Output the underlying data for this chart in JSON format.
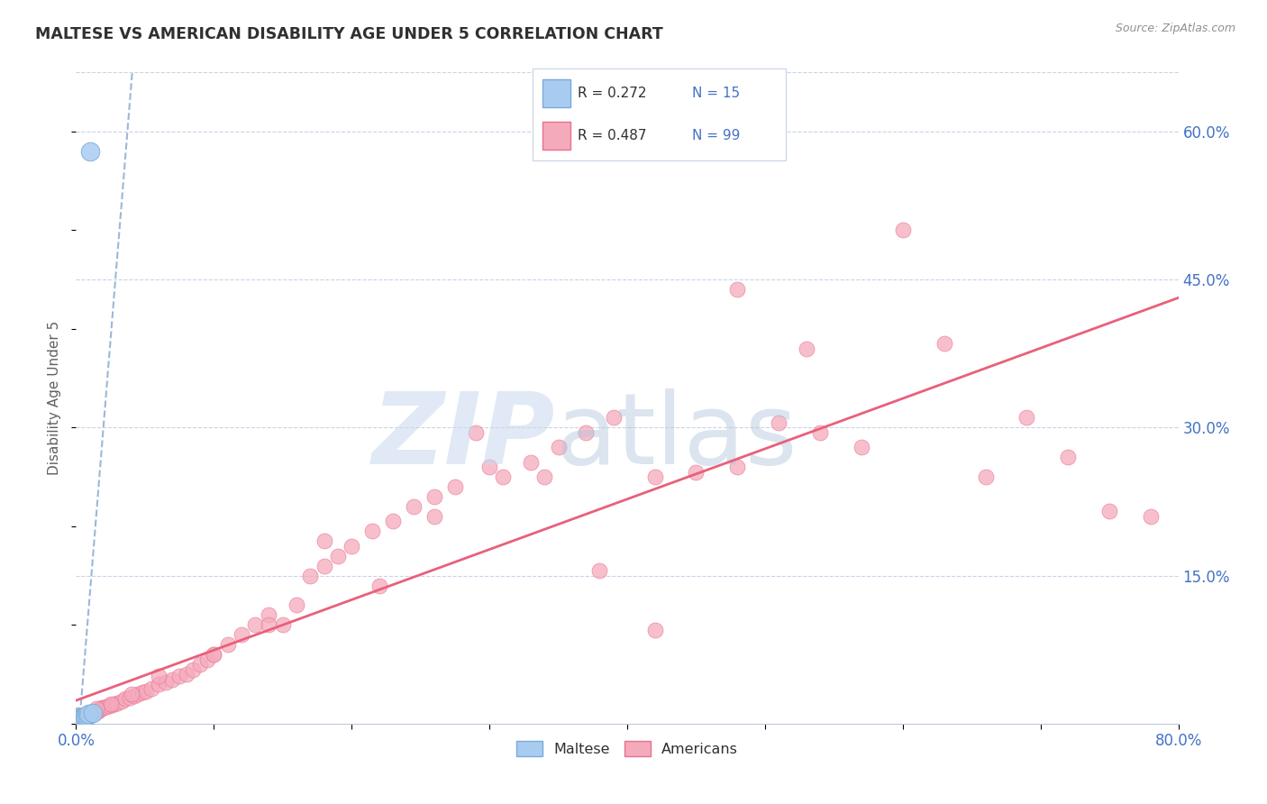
{
  "title": "MALTESE VS AMERICAN DISABILITY AGE UNDER 5 CORRELATION CHART",
  "source_text": "Source: ZipAtlas.com",
  "ylabel": "Disability Age Under 5",
  "xlim": [
    0.0,
    0.8
  ],
  "ylim": [
    0.0,
    0.66
  ],
  "yticks_right": [
    0.15,
    0.3,
    0.45,
    0.6
  ],
  "ytick_labels_right": [
    "15.0%",
    "30.0%",
    "45.0%",
    "60.0%"
  ],
  "maltese_R": 0.272,
  "maltese_N": 15,
  "american_R": 0.487,
  "american_N": 99,
  "maltese_color": "#A8CCF0",
  "american_color": "#F5AABB",
  "maltese_edge_color": "#7AAAD8",
  "american_edge_color": "#E87090",
  "maltese_line_color": "#9BB8D8",
  "american_line_color": "#E8607A",
  "grid_color": "#C8D4E8",
  "title_color": "#303030",
  "axis_label_color": "#4472C4",
  "ylabel_color": "#606060",
  "source_color": "#909090",
  "legend_text_color": "#303030",
  "legend_N_color": "#4472C4",
  "maltese_x": [
    0.001,
    0.001,
    0.002,
    0.002,
    0.002,
    0.003,
    0.003,
    0.004,
    0.005,
    0.006,
    0.007,
    0.008,
    0.009,
    0.01,
    0.012
  ],
  "maltese_y": [
    0.003,
    0.005,
    0.003,
    0.005,
    0.007,
    0.004,
    0.006,
    0.005,
    0.006,
    0.006,
    0.007,
    0.008,
    0.01,
    0.58,
    0.011
  ],
  "american_x": [
    0.001,
    0.002,
    0.002,
    0.003,
    0.003,
    0.004,
    0.004,
    0.005,
    0.005,
    0.006,
    0.006,
    0.007,
    0.007,
    0.008,
    0.008,
    0.009,
    0.01,
    0.011,
    0.012,
    0.013,
    0.014,
    0.015,
    0.016,
    0.017,
    0.018,
    0.019,
    0.02,
    0.022,
    0.024,
    0.026,
    0.028,
    0.03,
    0.033,
    0.036,
    0.039,
    0.042,
    0.045,
    0.048,
    0.051,
    0.055,
    0.06,
    0.065,
    0.07,
    0.075,
    0.08,
    0.085,
    0.09,
    0.095,
    0.1,
    0.11,
    0.12,
    0.13,
    0.14,
    0.15,
    0.16,
    0.17,
    0.18,
    0.19,
    0.2,
    0.215,
    0.23,
    0.245,
    0.26,
    0.275,
    0.29,
    0.31,
    0.33,
    0.35,
    0.37,
    0.39,
    0.42,
    0.45,
    0.48,
    0.51,
    0.54,
    0.57,
    0.6,
    0.63,
    0.66,
    0.69,
    0.72,
    0.75,
    0.78,
    0.48,
    0.53,
    0.34,
    0.38,
    0.42,
    0.3,
    0.26,
    0.22,
    0.18,
    0.14,
    0.1,
    0.06,
    0.04,
    0.025,
    0.015,
    0.008
  ],
  "american_y": [
    0.004,
    0.003,
    0.006,
    0.004,
    0.007,
    0.004,
    0.006,
    0.005,
    0.008,
    0.005,
    0.008,
    0.006,
    0.009,
    0.007,
    0.01,
    0.008,
    0.009,
    0.01,
    0.011,
    0.011,
    0.012,
    0.013,
    0.013,
    0.014,
    0.015,
    0.016,
    0.016,
    0.017,
    0.018,
    0.019,
    0.02,
    0.021,
    0.023,
    0.025,
    0.026,
    0.028,
    0.03,
    0.032,
    0.033,
    0.035,
    0.04,
    0.042,
    0.045,
    0.048,
    0.05,
    0.055,
    0.06,
    0.065,
    0.07,
    0.08,
    0.09,
    0.1,
    0.11,
    0.1,
    0.12,
    0.15,
    0.16,
    0.17,
    0.18,
    0.195,
    0.205,
    0.22,
    0.23,
    0.24,
    0.295,
    0.25,
    0.265,
    0.28,
    0.295,
    0.31,
    0.25,
    0.255,
    0.26,
    0.305,
    0.295,
    0.28,
    0.5,
    0.385,
    0.25,
    0.31,
    0.27,
    0.215,
    0.21,
    0.44,
    0.38,
    0.25,
    0.155,
    0.095,
    0.26,
    0.21,
    0.14,
    0.185,
    0.1,
    0.07,
    0.048,
    0.03,
    0.02,
    0.015,
    0.008
  ]
}
